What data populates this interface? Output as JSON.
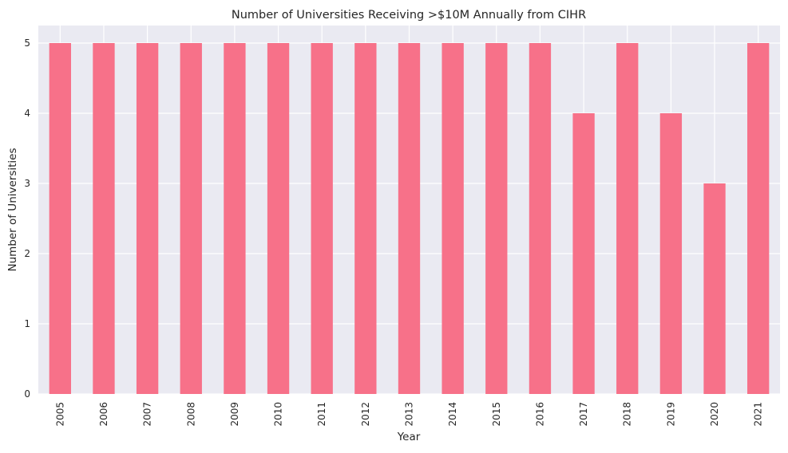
{
  "chart_data": {
    "type": "bar",
    "title": "Number of Universities Receiving >$10M Annually from CIHR",
    "xlabel": "Year",
    "ylabel": "Number of Universities",
    "categories": [
      "2005",
      "2006",
      "2007",
      "2008",
      "2009",
      "2010",
      "2011",
      "2012",
      "2013",
      "2014",
      "2015",
      "2016",
      "2017",
      "2018",
      "2019",
      "2020",
      "2021"
    ],
    "values": [
      5,
      5,
      5,
      5,
      5,
      5,
      5,
      5,
      5,
      5,
      5,
      5,
      4,
      5,
      4,
      3,
      5
    ],
    "ylim": [
      0,
      5.25
    ],
    "yticks": [
      0,
      1,
      2,
      3,
      4,
      5
    ],
    "grid": true,
    "legend": "none",
    "bar_color": "#f77189",
    "background_color": "#eaeaf2",
    "grid_color": "#ffffff"
  }
}
